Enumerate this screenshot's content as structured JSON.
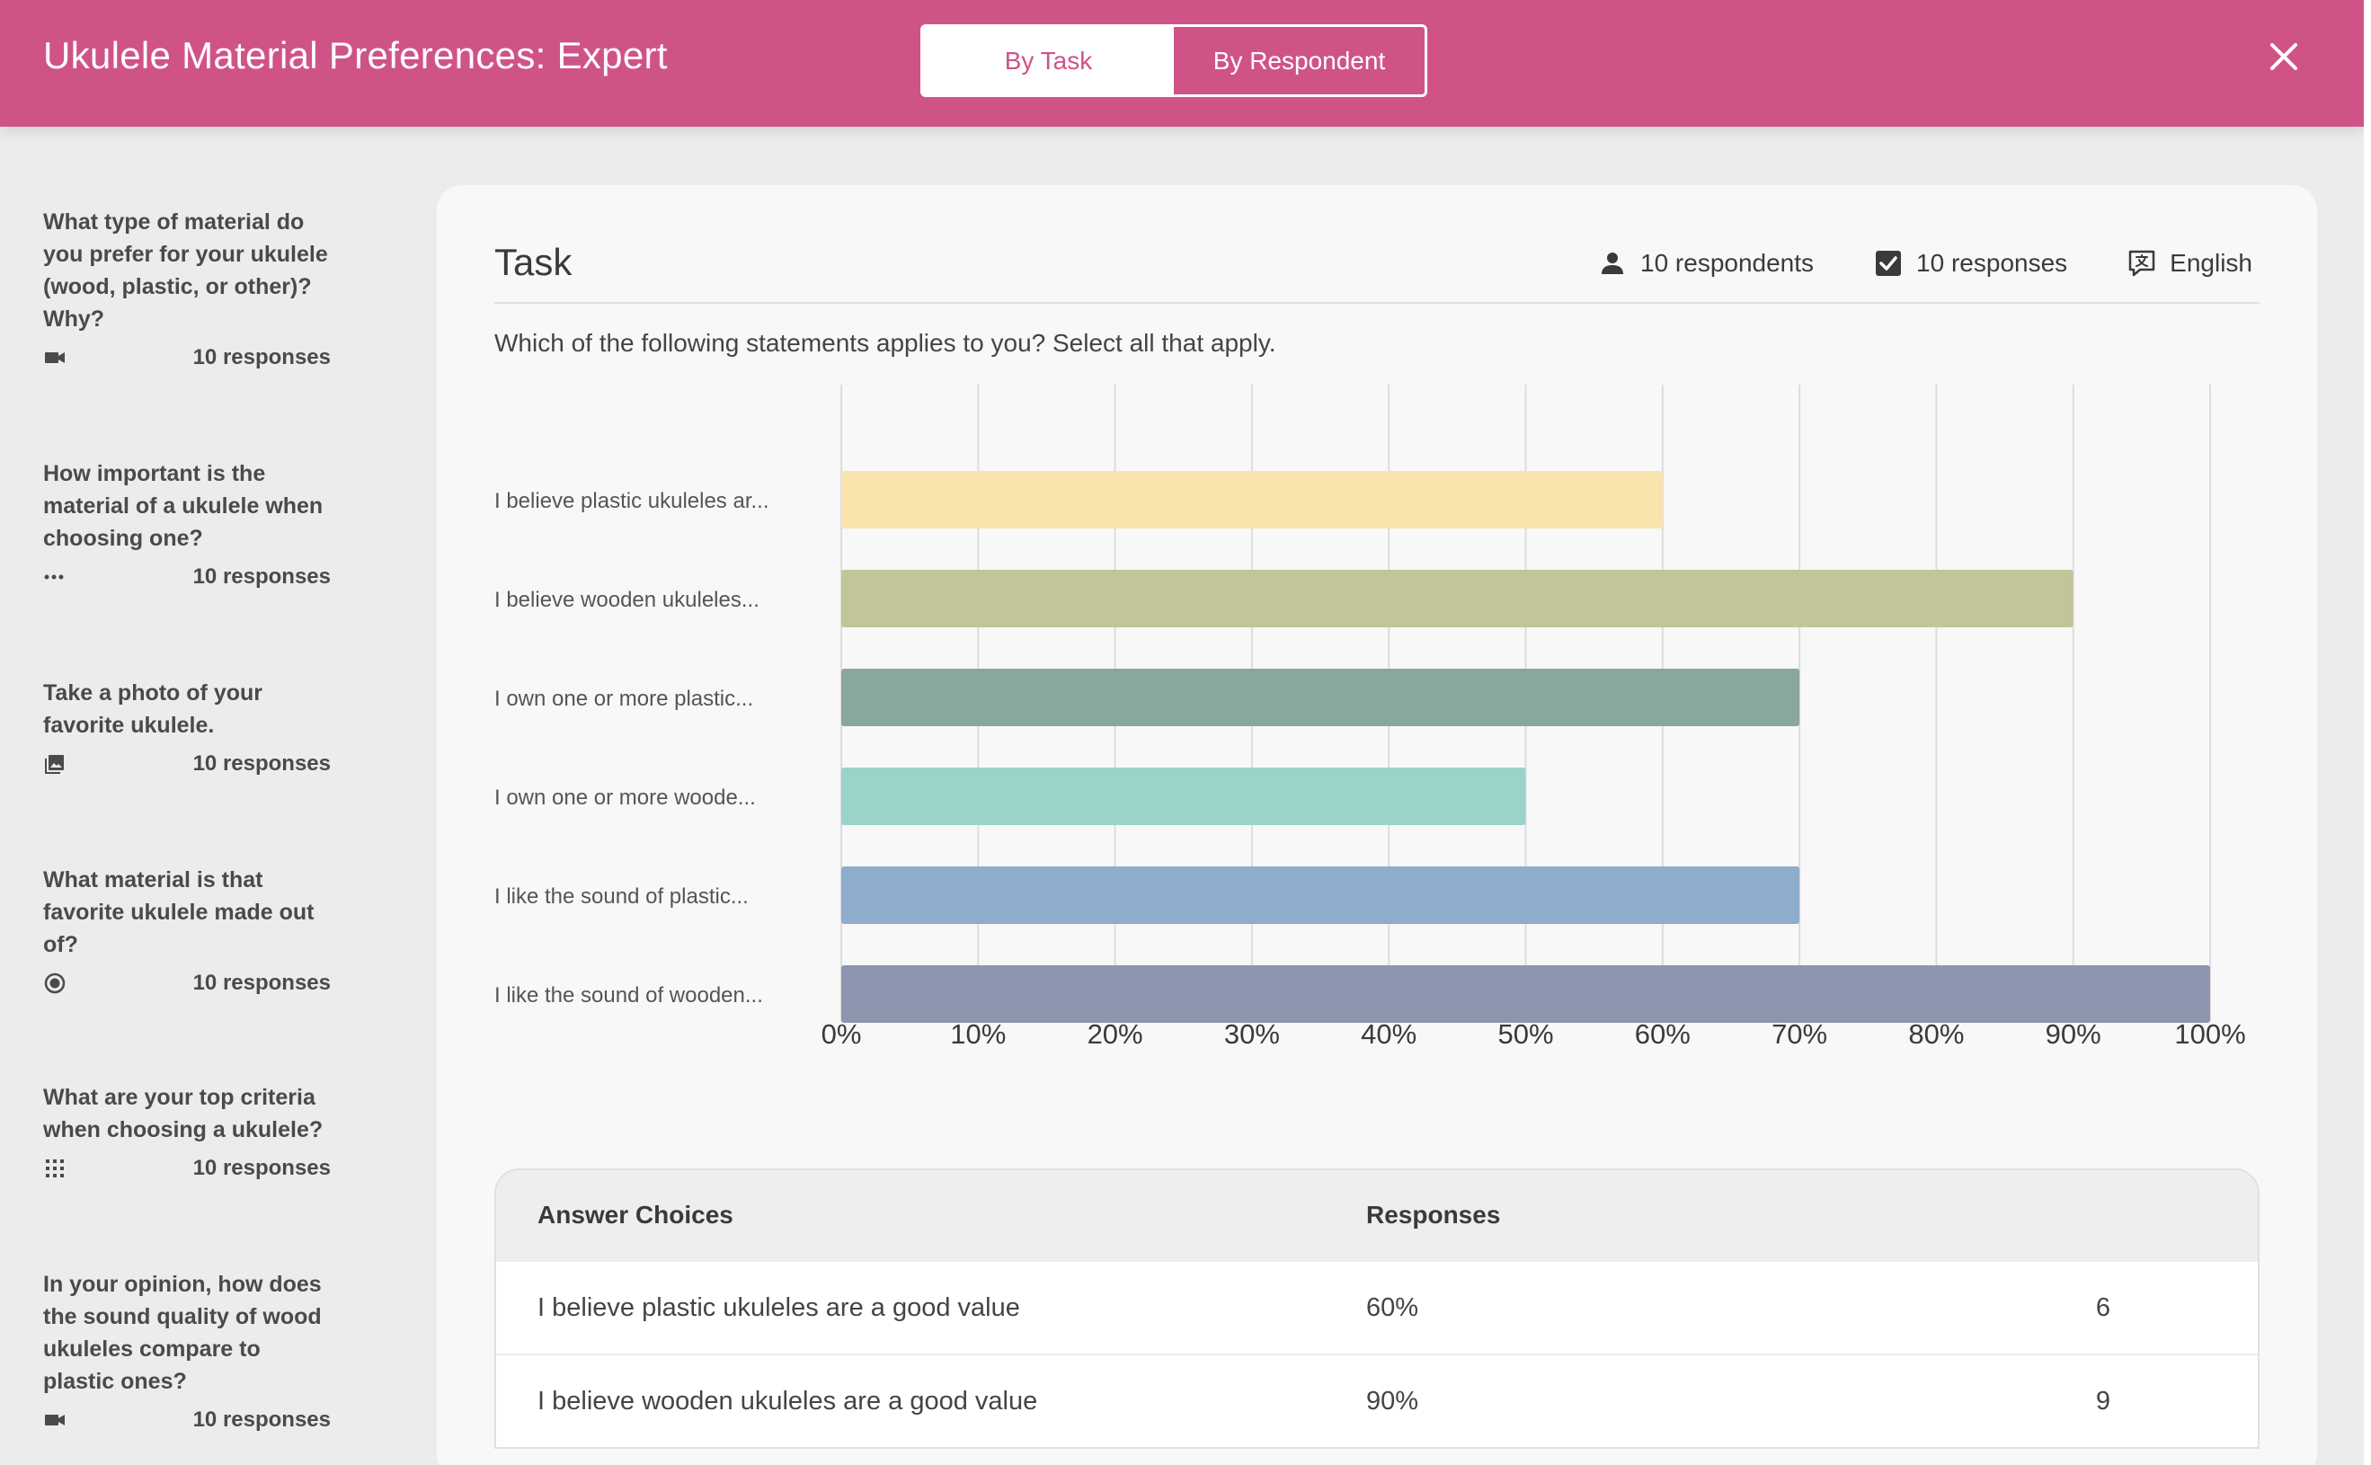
{
  "header": {
    "title": "Ukulele Material Preferences: Expert",
    "toggle": [
      "By Task",
      "By Respondent"
    ],
    "close_icon": "close-icon",
    "color": "#d05388"
  },
  "sidebar": {
    "items": [
      {
        "question": "What type of material do you prefer for your ukulele (wood, plastic, or other)? Why?",
        "icon": "video-icon",
        "count": "10 responses"
      },
      {
        "question": "How important is the material of a ukulele when choosing one?",
        "icon": "dots-icon",
        "count": "10 responses"
      },
      {
        "question": "Take a photo of your favorite ukulele.",
        "icon": "photo-icon",
        "count": "10 responses"
      },
      {
        "question": "What material is that favorite ukulele made out of?",
        "icon": "radio-icon",
        "count": "10 responses"
      },
      {
        "question": "What are your top criteria when choosing a ukulele?",
        "icon": "grid-icon",
        "count": "10 responses"
      },
      {
        "question": "In your opinion, how does the sound quality of wood ukuleles compare to plastic ones?",
        "icon": "video-icon",
        "count": "10 responses"
      }
    ]
  },
  "task": {
    "title": "Task",
    "respondents": "10 respondents",
    "responses": "10 responses",
    "language": "English",
    "prompt": "Which of the following statements applies to you? Select all that apply."
  },
  "chart_data": {
    "type": "bar",
    "orientation": "horizontal",
    "categories": [
      "I believe plastic ukuleles ar...",
      "I believe wooden ukuleles...",
      "I own one or more plastic...",
      "I own one or more woode...",
      "I like the sound of plastic...",
      "I like the sound of wooden..."
    ],
    "values": [
      60,
      90,
      70,
      50,
      70,
      100
    ],
    "colors": [
      "#f9e4ae",
      "#c1c597",
      "#89a79b",
      "#9bd3ca",
      "#8eaccb",
      "#8e95af"
    ],
    "xlim": [
      0,
      100
    ],
    "xticks": [
      "0%",
      "10%",
      "20%",
      "30%",
      "40%",
      "50%",
      "60%",
      "70%",
      "80%",
      "90%",
      "100%"
    ],
    "grid": true
  },
  "table": {
    "headers": [
      "Answer Choices",
      "Responses"
    ],
    "rows": [
      {
        "choice": "I believe plastic ukuleles are a good value",
        "pct": "60%",
        "count": "6"
      },
      {
        "choice": "I believe wooden ukuleles are a good value",
        "pct": "90%",
        "count": "9"
      }
    ]
  }
}
